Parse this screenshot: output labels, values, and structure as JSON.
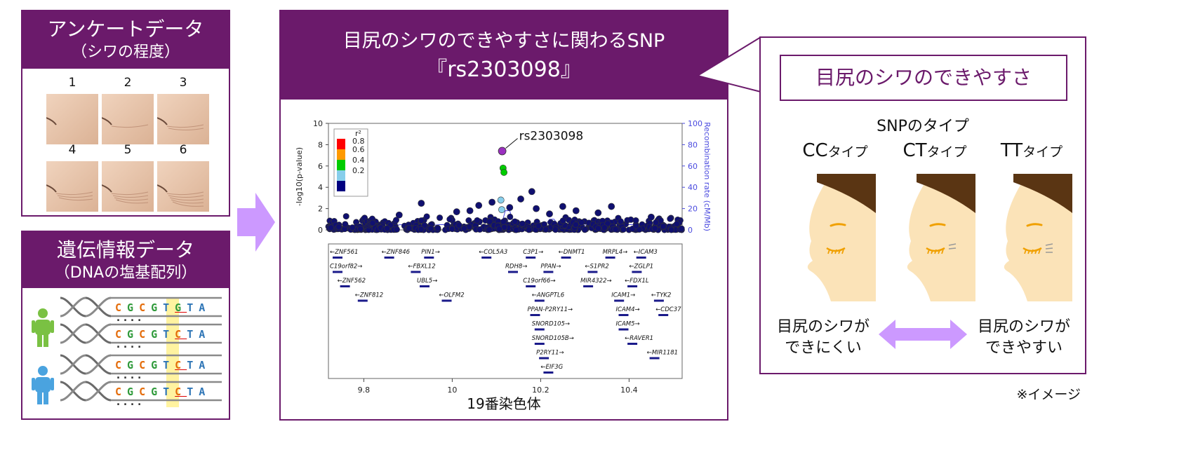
{
  "survey": {
    "title": "アンケートデータ",
    "subtitle": "（シワの程度）",
    "grades": [
      "1",
      "2",
      "3",
      "4",
      "5",
      "6"
    ]
  },
  "genetic": {
    "title": "遺伝情報データ",
    "subtitle": "（DNAの塩基配列）",
    "sequences": [
      {
        "person": "green",
        "bases": [
          "C",
          "G",
          "C",
          "G",
          "T",
          "G",
          "T",
          "A"
        ],
        "highlight": 5
      },
      {
        "person": "green",
        "bases": [
          "C",
          "G",
          "C",
          "G",
          "T",
          "C",
          "T",
          "A"
        ],
        "highlight": 5
      },
      {
        "person": "blue",
        "bases": [
          "C",
          "G",
          "C",
          "G",
          "T",
          "C",
          "T",
          "A"
        ],
        "highlight": 5
      },
      {
        "person": "blue",
        "bases": [
          "C",
          "G",
          "C",
          "G",
          "T",
          "C",
          "T",
          "A"
        ],
        "highlight": 5
      }
    ],
    "ellipsis": "····"
  },
  "center": {
    "title_line1": "目尻のシワのできやすさに関わるSNP",
    "title_line2": "『rs2303098』",
    "xlabel": "19番染色体"
  },
  "chart_data": {
    "type": "scatter",
    "ylabel_left": "-log10(p-value)",
    "ylabel_right": "Recombination rate (cM/Mb)",
    "xlabel": "19番染色体",
    "x_ticks": [
      9.8,
      10,
      10.2,
      10.4
    ],
    "y_ticks": [
      0,
      2,
      4,
      6,
      8,
      10
    ],
    "y_right_ticks": [
      0,
      20,
      40,
      60,
      80,
      100
    ],
    "xlim": [
      9.72,
      10.52
    ],
    "ylim": [
      0,
      10
    ],
    "legend_title": "r²",
    "legend": [
      {
        "label": "0.8",
        "color": "#ff0000"
      },
      {
        "label": "0.6",
        "color": "#ff9900"
      },
      {
        "label": "0.4",
        "color": "#00cc00"
      },
      {
        "label": "0.2",
        "color": "#87ceeb"
      },
      {
        "label": "",
        "color": "#000080"
      }
    ],
    "lead_snp": {
      "label": "rs2303098",
      "x": 10.113,
      "y": 7.4
    },
    "highlight_points": [
      {
        "x": 10.115,
        "y": 5.8,
        "color": "#00cc00"
      },
      {
        "x": 10.117,
        "y": 5.4,
        "color": "#00cc00"
      },
      {
        "x": 10.11,
        "y": 2.8,
        "color": "#87ceeb"
      },
      {
        "x": 10.112,
        "y": 1.9,
        "color": "#87ceeb"
      }
    ],
    "tall_points": [
      {
        "x": 9.93,
        "y": 2.5
      },
      {
        "x": 10.06,
        "y": 2.3
      },
      {
        "x": 10.09,
        "y": 2.6
      },
      {
        "x": 10.13,
        "y": 2.1
      },
      {
        "x": 10.155,
        "y": 2.9
      },
      {
        "x": 10.18,
        "y": 3.6
      },
      {
        "x": 10.19,
        "y": 2.0
      },
      {
        "x": 10.25,
        "y": 2.2
      },
      {
        "x": 10.28,
        "y": 1.8
      },
      {
        "x": 10.33,
        "y": 1.6
      },
      {
        "x": 10.36,
        "y": 2.2
      },
      {
        "x": 10.45,
        "y": 1.2
      },
      {
        "x": 10.22,
        "y": 1.5
      },
      {
        "x": 10.01,
        "y": 1.7
      },
      {
        "x": 10.04,
        "y": 1.8
      },
      {
        "x": 9.88,
        "y": 1.4
      }
    ],
    "genes": [
      {
        "name": "←ZNF561",
        "x": 9.72,
        "row": 0
      },
      {
        "name": "←ZNF846",
        "x": 9.84,
        "row": 0
      },
      {
        "name": "PIN1→",
        "x": 9.93,
        "row": 0
      },
      {
        "name": "←COL5A3",
        "x": 10.06,
        "row": 0
      },
      {
        "name": "C3P1→",
        "x": 10.16,
        "row": 0
      },
      {
        "name": "←DNMT1",
        "x": 10.24,
        "row": 0
      },
      {
        "name": "MRPL4→",
        "x": 10.34,
        "row": 0
      },
      {
        "name": "←ICAM3",
        "x": 10.41,
        "row": 0
      },
      {
        "name": "C19orf82→",
        "x": 9.72,
        "row": 1
      },
      {
        "name": "←FBXL12",
        "x": 9.9,
        "row": 1
      },
      {
        "name": "RDH8→",
        "x": 10.12,
        "row": 1
      },
      {
        "name": "PPAN→",
        "x": 10.2,
        "row": 1
      },
      {
        "name": "←S1PR2",
        "x": 10.3,
        "row": 1
      },
      {
        "name": "←ZGLP1",
        "x": 10.4,
        "row": 1
      },
      {
        "name": "←ZNF562",
        "x": 9.74,
        "row": 2
      },
      {
        "name": "UBL5→",
        "x": 9.92,
        "row": 2
      },
      {
        "name": "C19orf66→",
        "x": 10.16,
        "row": 2
      },
      {
        "name": "MIR4322→",
        "x": 10.29,
        "row": 2
      },
      {
        "name": "←FDX1L",
        "x": 10.39,
        "row": 2
      },
      {
        "name": "←ZNF812",
        "x": 9.78,
        "row": 3
      },
      {
        "name": "←OLFM2",
        "x": 9.97,
        "row": 3
      },
      {
        "name": "←ANGPTL6",
        "x": 10.18,
        "row": 3
      },
      {
        "name": "ICAM1→",
        "x": 10.36,
        "row": 3
      },
      {
        "name": "←TYK2",
        "x": 10.45,
        "row": 3
      },
      {
        "name": "PPAN-P2RY11→",
        "x": 10.17,
        "row": 4
      },
      {
        "name": "ICAM4→",
        "x": 10.37,
        "row": 4
      },
      {
        "name": "←CDC37",
        "x": 10.46,
        "row": 4
      },
      {
        "name": "SNORD105→",
        "x": 10.18,
        "row": 5
      },
      {
        "name": "ICAM5→",
        "x": 10.37,
        "row": 5
      },
      {
        "name": "SNORD105B→",
        "x": 10.18,
        "row": 6
      },
      {
        "name": "←RAVER1",
        "x": 10.39,
        "row": 6
      },
      {
        "name": "P2RY11→",
        "x": 10.19,
        "row": 7
      },
      {
        "name": "←MIR1181",
        "x": 10.44,
        "row": 7
      },
      {
        "name": "←EIF3G",
        "x": 10.2,
        "row": 8
      }
    ]
  },
  "right": {
    "title": "目尻のシワのできやすさ",
    "snp_type_label": "SNPのタイプ",
    "types": [
      {
        "code": "CC",
        "suffix": "タイプ",
        "lines": 0
      },
      {
        "code": "CT",
        "suffix": "タイプ",
        "lines": 2
      },
      {
        "code": "TT",
        "suffix": "タイプ",
        "lines": 3
      }
    ],
    "left_outcome": [
      "目尻のシワが",
      "できにくい"
    ],
    "right_outcome": [
      "目尻のシワが",
      "できやすい"
    ],
    "note": "※イメージ"
  },
  "colors": {
    "accent": "#6b1a6b",
    "arrow": "#cc99ff",
    "skin": "#fbe3b8",
    "hair": "#5a3513",
    "eye": "#f0a000"
  }
}
